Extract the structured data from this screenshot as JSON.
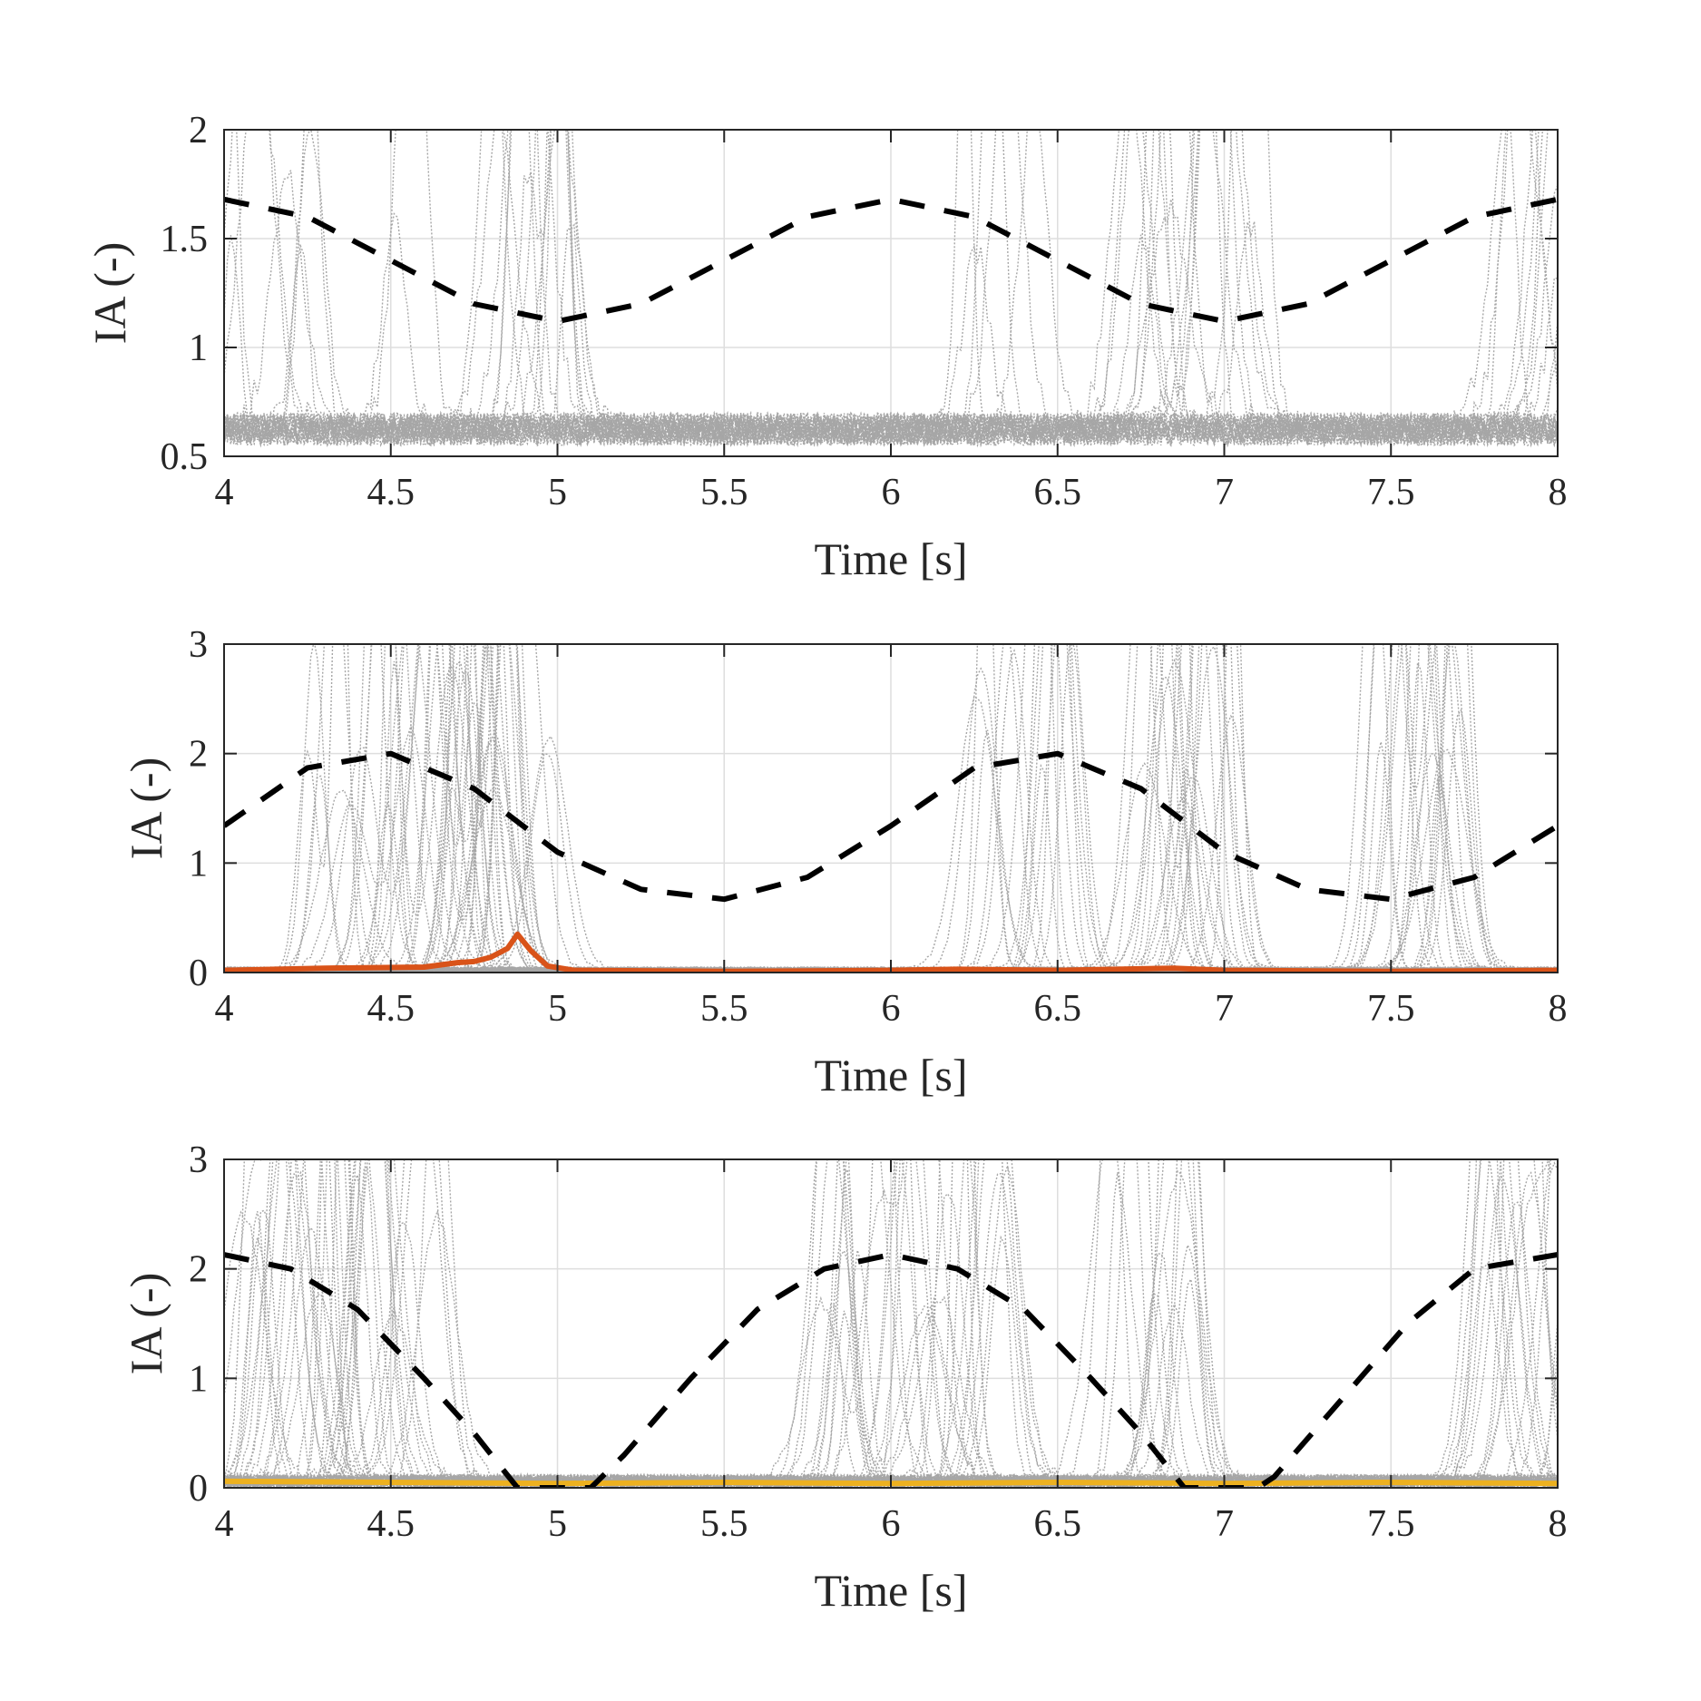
{
  "colors": {
    "reference": "#000000",
    "trials": "#a6a6a6",
    "mean_panel2": "#d95319",
    "mean_panel3": "#edb120",
    "grid": "#dedede",
    "axes": "#262626"
  },
  "chart_data": [
    {
      "type": "line",
      "xlabel": "Time [s]",
      "ylabel": "IA (-)",
      "xlim": [
        4,
        8
      ],
      "ylim": [
        0.5,
        2
      ],
      "xticks": [
        "4",
        "4.5",
        "5",
        "5.5",
        "6",
        "6.5",
        "7",
        "7.5",
        "8"
      ],
      "yticks": [
        "0.5",
        "1",
        "1.5",
        "2"
      ],
      "grid": true,
      "series": [
        {
          "role": "reference",
          "style": "dashed",
          "x": [
            4.0,
            4.25,
            4.5,
            4.75,
            5.0,
            5.25,
            5.5,
            5.75,
            6.0,
            6.25,
            6.5,
            6.75,
            7.0,
            7.25,
            7.5,
            7.75,
            8.0
          ],
          "y": [
            1.68,
            1.6,
            1.4,
            1.2,
            1.12,
            1.2,
            1.4,
            1.6,
            1.68,
            1.6,
            1.4,
            1.2,
            1.12,
            1.2,
            1.4,
            1.6,
            1.68
          ]
        },
        {
          "role": "trials",
          "style": "dotted",
          "description_free_count": 40
        }
      ]
    },
    {
      "type": "line",
      "xlabel": "Time [s]",
      "ylabel": "IA (-)",
      "xlim": [
        4,
        8
      ],
      "ylim": [
        0,
        3
      ],
      "xticks": [
        "4",
        "4.5",
        "5",
        "5.5",
        "6",
        "6.5",
        "7",
        "7.5",
        "8"
      ],
      "yticks": [
        "0",
        "1",
        "2",
        "3"
      ],
      "grid": true,
      "series": [
        {
          "role": "reference",
          "style": "dashed",
          "x": [
            4.0,
            4.25,
            4.5,
            4.75,
            5.0,
            5.25,
            5.5,
            5.75,
            6.0,
            6.25,
            6.5,
            6.75,
            7.0,
            7.25,
            7.5,
            7.75,
            8.0
          ],
          "y": [
            1.34,
            1.87,
            2.0,
            1.68,
            1.1,
            0.76,
            0.67,
            0.87,
            1.34,
            1.87,
            2.0,
            1.68,
            1.1,
            0.76,
            0.67,
            0.87,
            1.34
          ]
        },
        {
          "role": "mean",
          "style": "solid",
          "x": [
            4.0,
            4.3,
            4.6,
            4.7,
            4.75,
            4.8,
            4.85,
            4.88,
            4.92,
            4.97,
            5.05,
            5.5,
            6.0,
            6.2,
            6.5,
            6.85,
            7.0,
            7.5,
            8.0
          ],
          "y": [
            0.02,
            0.04,
            0.05,
            0.09,
            0.1,
            0.14,
            0.22,
            0.35,
            0.2,
            0.06,
            0.02,
            0.01,
            0.02,
            0.03,
            0.02,
            0.04,
            0.02,
            0.01,
            0.02
          ]
        },
        {
          "role": "trials",
          "style": "dotted"
        }
      ]
    },
    {
      "type": "line",
      "xlabel": "Time [s]",
      "ylabel": "IA (-)",
      "xlim": [
        4,
        8
      ],
      "ylim": [
        0,
        3
      ],
      "xticks": [
        "4",
        "4.5",
        "5",
        "5.5",
        "6",
        "6.5",
        "7",
        "7.5",
        "8"
      ],
      "yticks": [
        "0",
        "1",
        "2",
        "3"
      ],
      "grid": true,
      "series": [
        {
          "role": "reference",
          "style": "dashed",
          "x": [
            4.0,
            4.2,
            4.4,
            4.6,
            4.75,
            4.88,
            4.95,
            5.1,
            5.2,
            5.4,
            5.6,
            5.8,
            6.0,
            6.2,
            6.4,
            6.6,
            6.75,
            6.88,
            6.95,
            7.1,
            7.15,
            7.35,
            7.55,
            7.75,
            8.0
          ],
          "y": [
            2.13,
            2.0,
            1.63,
            1.0,
            0.5,
            0.0,
            0.0,
            0.0,
            0.3,
            1.0,
            1.63,
            2.0,
            2.13,
            2.0,
            1.63,
            1.0,
            0.5,
            0.0,
            0.0,
            0.0,
            0.1,
            0.8,
            1.5,
            2.0,
            2.13
          ]
        },
        {
          "role": "mean",
          "style": "solid",
          "x": [
            4.0,
            4.5,
            5.0,
            5.5,
            6.0,
            6.5,
            7.0,
            7.5,
            8.0
          ],
          "y": [
            0.06,
            0.05,
            0.04,
            0.05,
            0.04,
            0.05,
            0.04,
            0.05,
            0.04
          ]
        },
        {
          "role": "trials",
          "style": "dotted"
        }
      ]
    }
  ]
}
